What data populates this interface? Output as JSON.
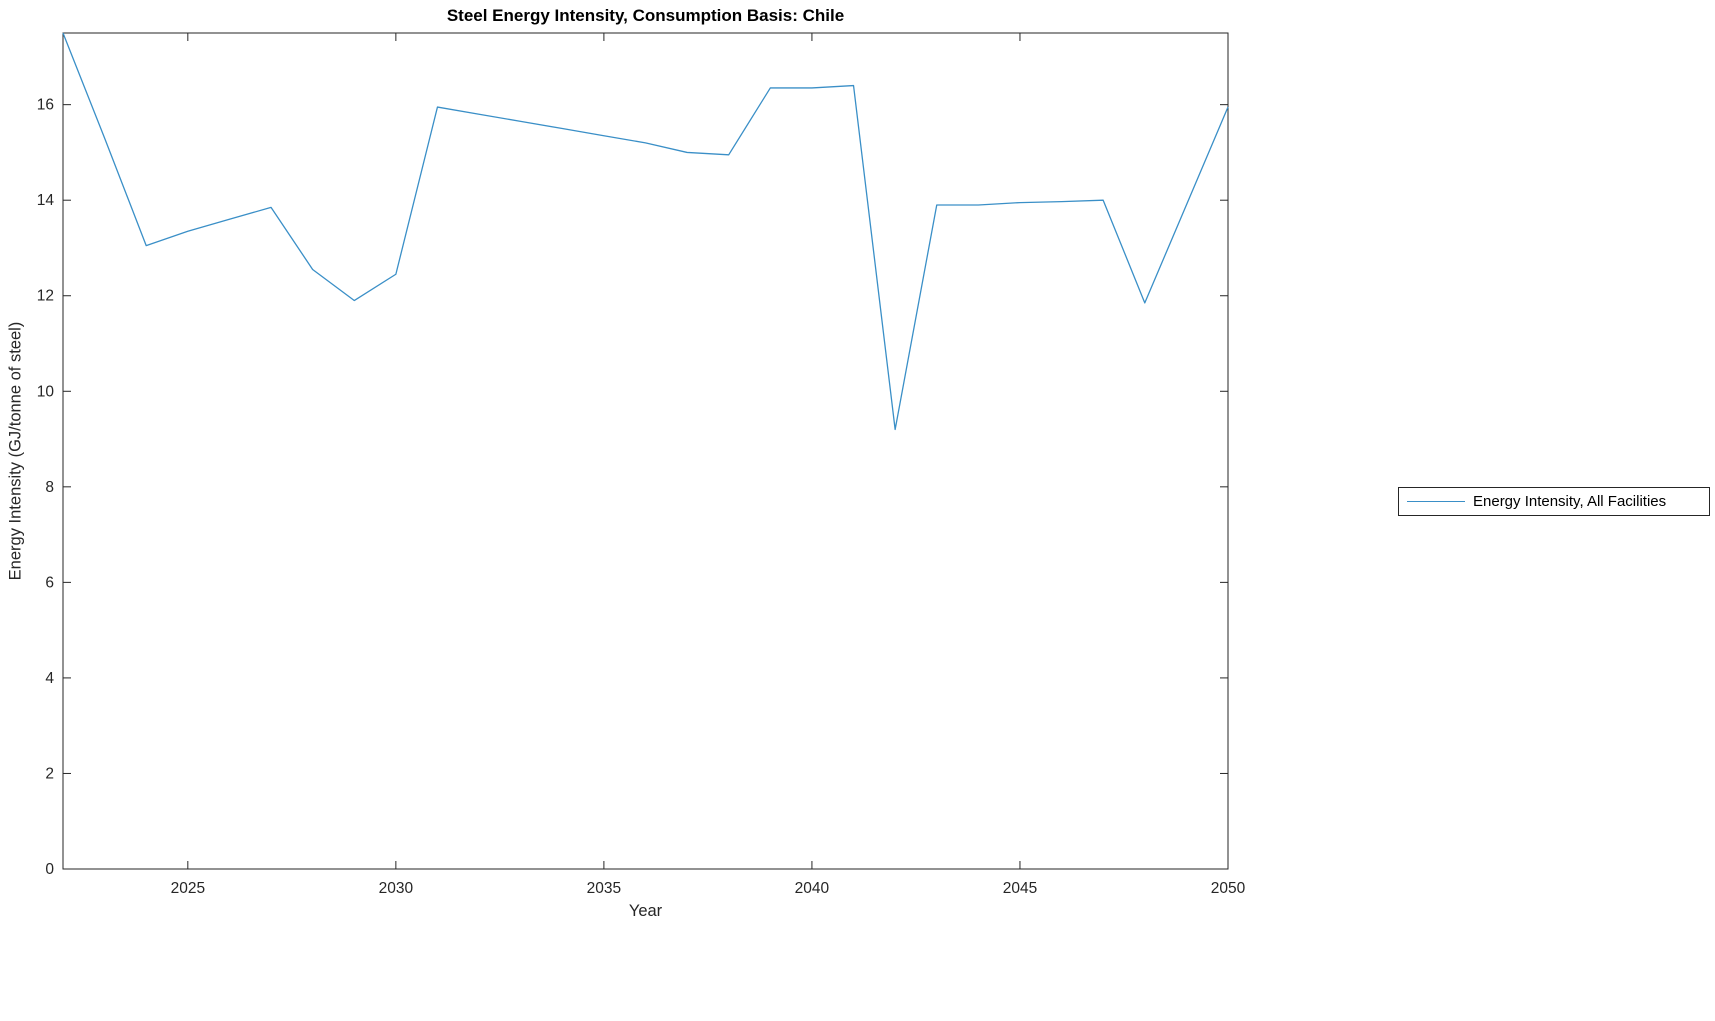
{
  "chart_data": {
    "type": "line",
    "title": "Steel Energy Intensity, Consumption Basis: Chile",
    "xlabel": "Year",
    "ylabel": "Energy Intensity (GJ/tonne of steel)",
    "legend_position": "right-outside",
    "grid": false,
    "xlim": [
      2022,
      2050
    ],
    "ylim": [
      0,
      17.5
    ],
    "xticks": [
      2025,
      2030,
      2035,
      2040,
      2045,
      2050
    ],
    "yticks": [
      0,
      2,
      4,
      6,
      8,
      10,
      12,
      14,
      16
    ],
    "axis_color": "#262626",
    "series": [
      {
        "name": "Energy Intensity, All Facilities",
        "color": "#3a8fc7",
        "x": [
          2022,
          2023,
          2024,
          2025,
          2026,
          2027,
          2028,
          2029,
          2030,
          2031,
          2032,
          2033,
          2034,
          2035,
          2036,
          2037,
          2038,
          2039,
          2040,
          2041,
          2042,
          2043,
          2044,
          2045,
          2046,
          2047,
          2048,
          2049,
          2050
        ],
        "y": [
          17.5,
          15.3,
          13.05,
          13.35,
          13.6,
          13.85,
          12.55,
          11.9,
          12.45,
          15.95,
          15.8,
          15.65,
          15.5,
          15.35,
          15.2,
          15.0,
          14.95,
          16.35,
          16.35,
          16.4,
          9.2,
          13.9,
          13.9,
          13.95,
          13.97,
          14.0,
          11.85,
          13.9,
          15.95
        ]
      }
    ]
  }
}
